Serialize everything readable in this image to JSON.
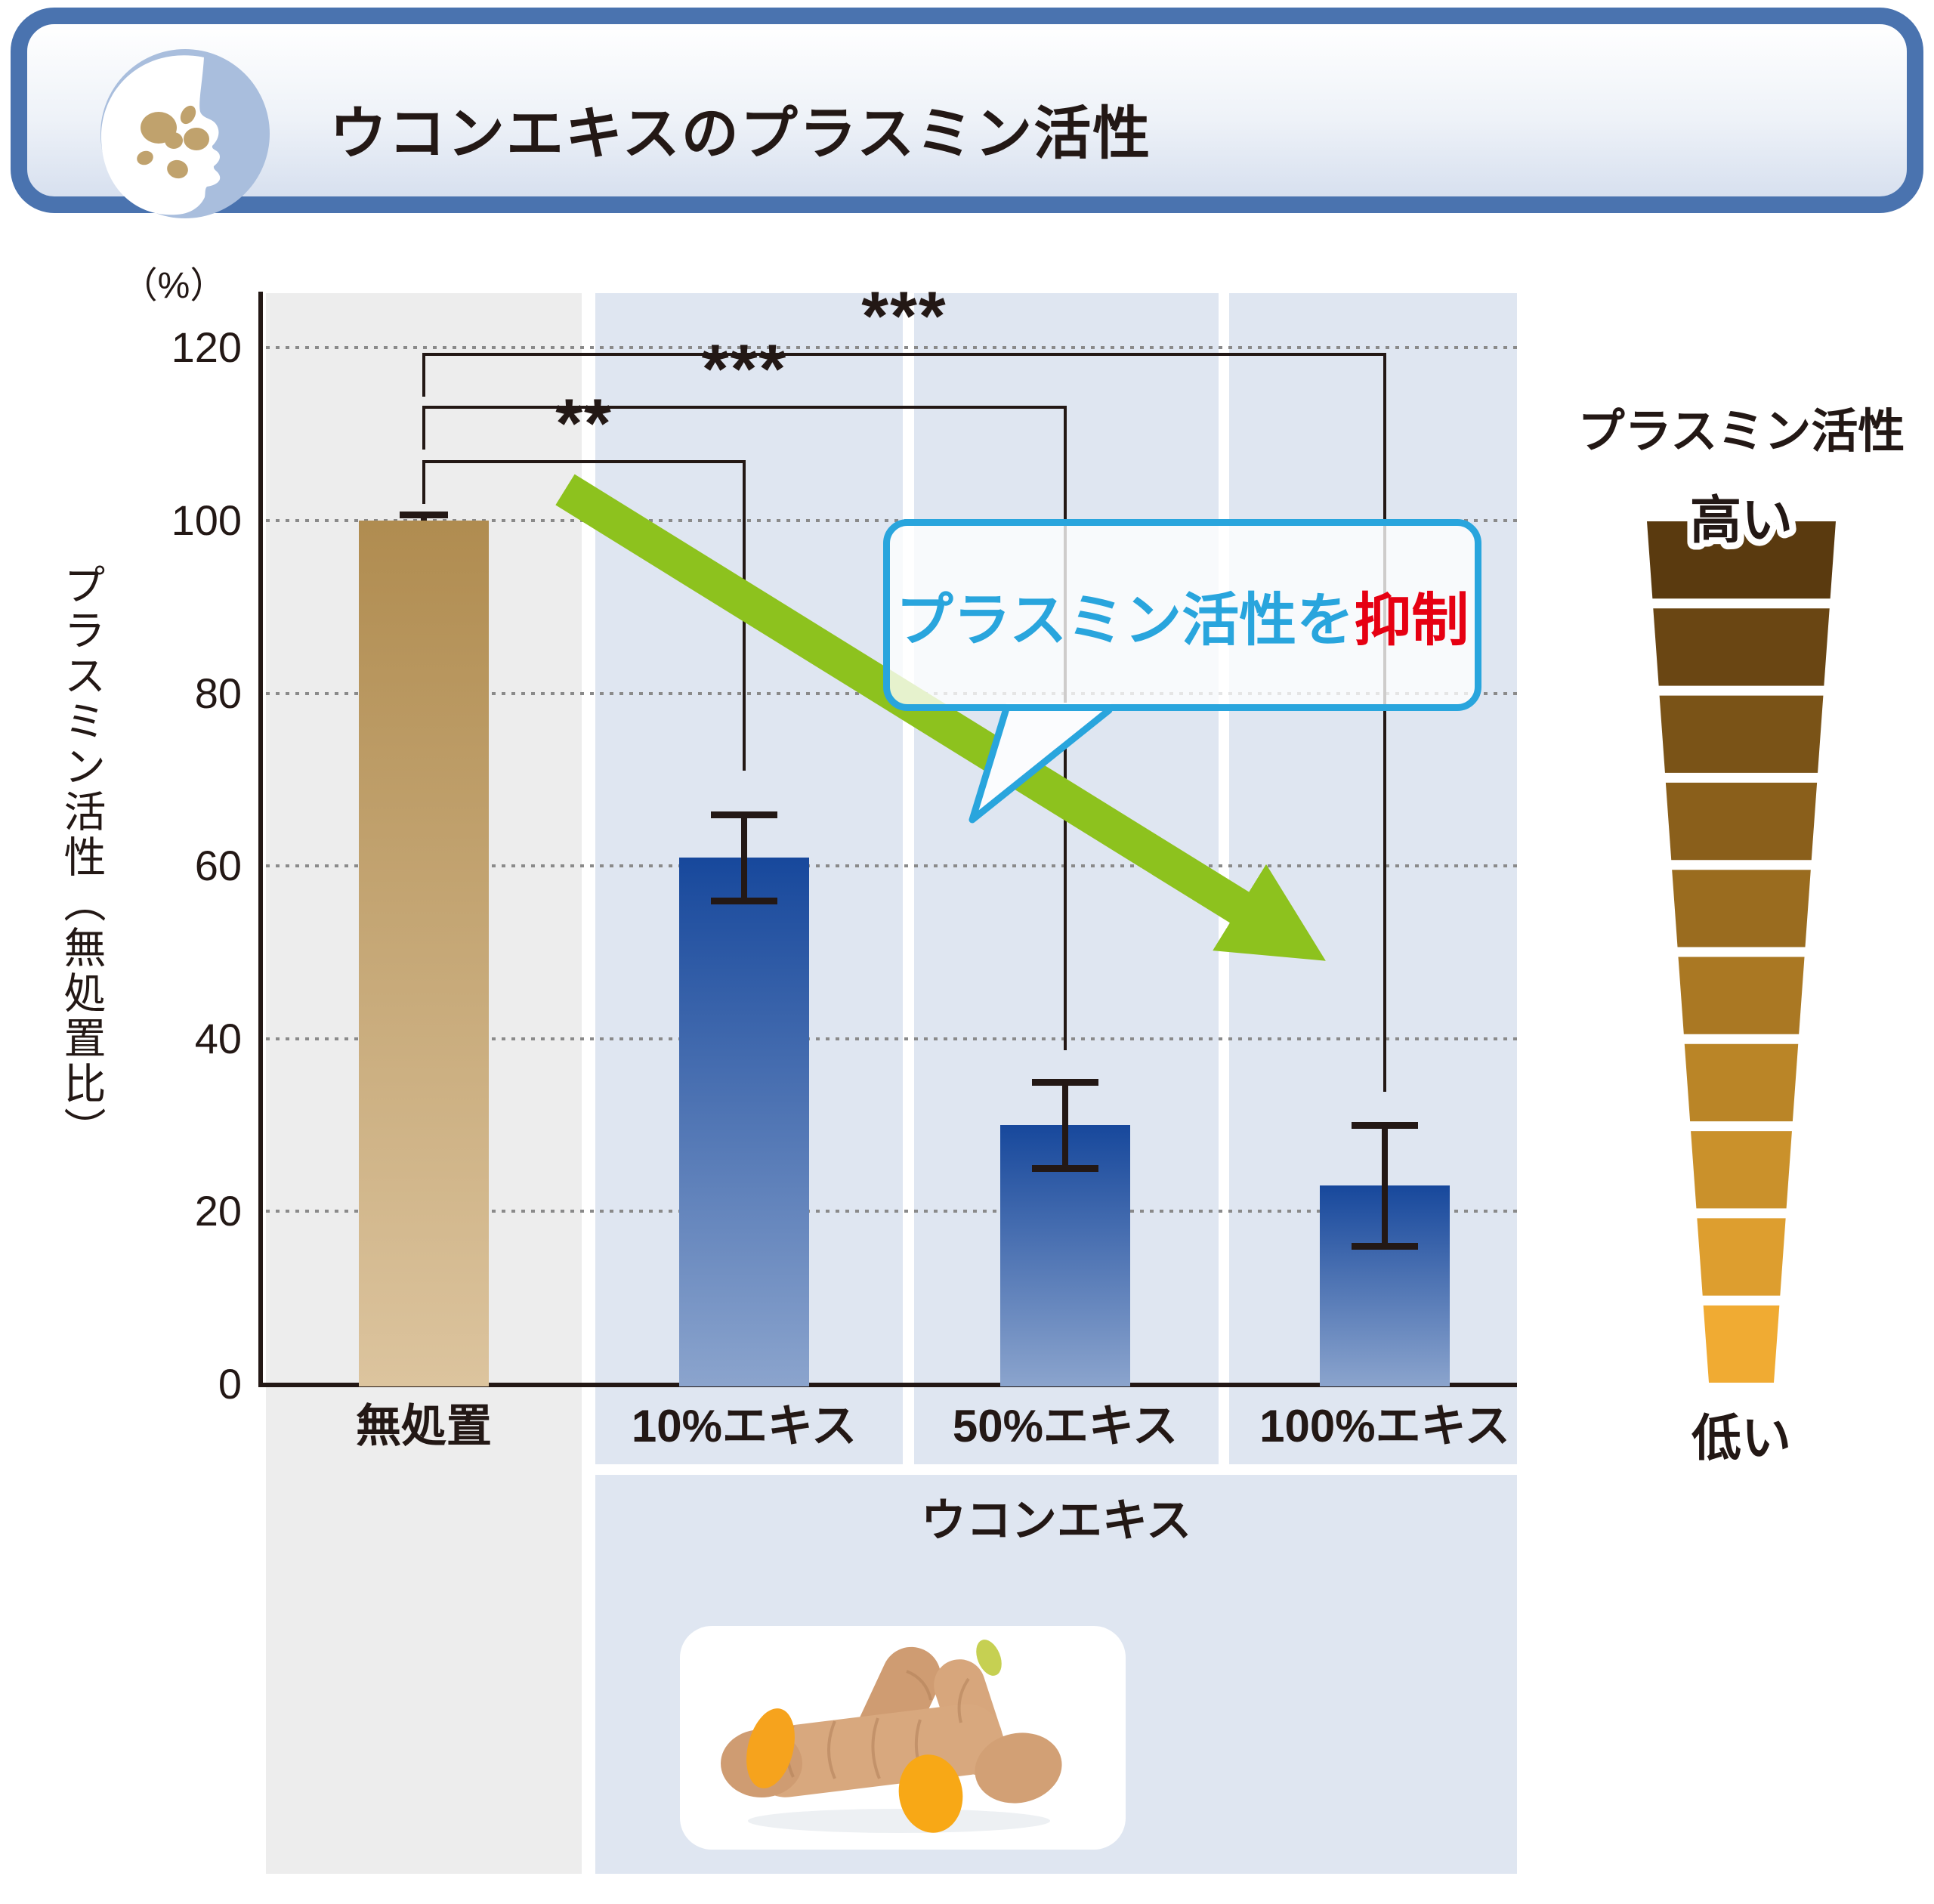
{
  "header": {
    "title": "ウコンエキスのプラスミン活性"
  },
  "chart_data": {
    "type": "bar",
    "title": "ウコンエキスのプラスミン活性",
    "unit_label": "（%）",
    "ylabel": "プラスミン活性（無処置比）",
    "ylim": [
      0,
      130
    ],
    "yticks": [
      0,
      20,
      40,
      60,
      80,
      100,
      120
    ],
    "grid": "dotted horizontal",
    "legend_position": "none",
    "categories": [
      "無処置",
      "10%エキス",
      "50%エキス",
      "100%エキス"
    ],
    "values": [
      100,
      61,
      30,
      23
    ],
    "error_plus": [
      0.7,
      5,
      5,
      7
    ],
    "error_minus": [
      0,
      5,
      5,
      7
    ],
    "group_label": "ウコンエキス",
    "significance": [
      {
        "from": "無処置",
        "to": "10%エキス",
        "label": "**"
      },
      {
        "from": "無処置",
        "to": "50%エキス",
        "label": "***"
      },
      {
        "from": "無処置",
        "to": "100%エキス",
        "label": "***"
      }
    ]
  },
  "annotation": {
    "text_blue": "プラスミン活性を",
    "text_red": "抑制"
  },
  "funnel_legend": {
    "title": "プラスミン活性",
    "high_label": "高い",
    "low_label": "低い"
  },
  "colors": {
    "accent_blue": "#29a5dd",
    "accent_red": "#e60012",
    "arrow_green": "#8dc21e",
    "header_border": "#4a73af",
    "bar_untreated_top": "#b08c50",
    "bar_untreated_bottom": "#dcc49e",
    "bar_extract_top": "#17489c",
    "bar_extract_bottom": "#8ba4cd",
    "column_gray": "#ededed",
    "column_blue": "#dfe6f1",
    "gridline": "#8a8a8a",
    "funnel_steps": [
      "#5a3a0f",
      "#6a4613",
      "#7a5317",
      "#8a5f1b",
      "#9a6c1f",
      "#aa7823",
      "#ba8527",
      "#ca912b",
      "#dd9e2f",
      "#f0ab33"
    ]
  }
}
